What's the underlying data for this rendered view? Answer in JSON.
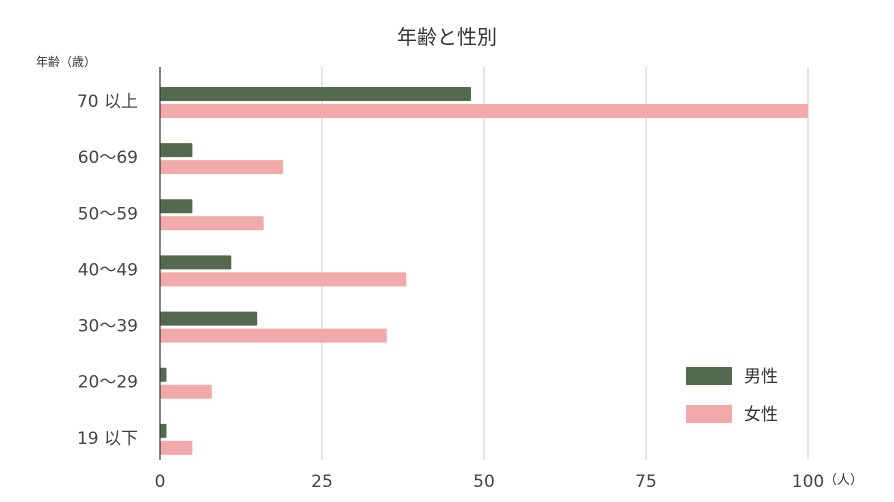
{
  "chart_data": {
    "type": "bar",
    "orientation": "horizontal",
    "title": "年齢と性別",
    "ylabel": "年齢（歳）",
    "xunit": "（人）",
    "categories": [
      "70 以上",
      "60～69",
      "50～59",
      "40～49",
      "30～39",
      "20～29",
      "19 以下"
    ],
    "series": [
      {
        "name": "男性",
        "color": "#546a4e",
        "values": [
          48,
          5,
          5,
          11,
          15,
          1,
          1
        ]
      },
      {
        "name": "女性",
        "color": "#f2a9a9",
        "values": [
          100,
          19,
          16,
          38,
          35,
          8,
          5
        ]
      }
    ],
    "xlim": [
      0,
      100
    ],
    "xticks": [
      0,
      25,
      50,
      75,
      100
    ],
    "grid": true,
    "legend_position": "bottom-right"
  }
}
